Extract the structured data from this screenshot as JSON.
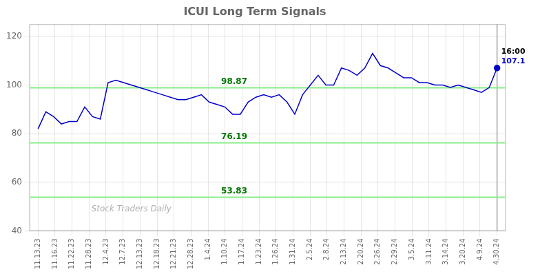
{
  "chart_data": {
    "type": "line",
    "title": "ICUI Long Term Signals",
    "color": "#0000cc",
    "marker": "last",
    "x": [
      0,
      0.4576,
      0.9153,
      1.3729,
      1.8305,
      2.2881,
      2.7458,
      3.2034,
      3.661,
      4.1186,
      4.5763,
      5.0339,
      5.4915,
      5.9492,
      6.4068,
      6.8644,
      7.322,
      7.7797,
      8.2373,
      8.6949,
      9.1525,
      9.6102,
      10.0678,
      10.5254,
      10.9831,
      11.4407,
      11.8983,
      12.3559,
      12.8136,
      13.2712,
      13.7288,
      14.1864,
      14.6441,
      15.1017,
      15.5593,
      16.0169,
      16.4746,
      16.9322,
      17.3898,
      17.8475,
      18.3051,
      18.7627,
      19.2203,
      19.678,
      20.1356,
      20.5932,
      21.0508,
      21.5085,
      21.9661,
      22.4237,
      22.8814,
      23.339,
      23.7966,
      24.2542,
      24.7119,
      25.1695,
      25.6271,
      26.0847,
      26.5424,
      27
    ],
    "values": [
      82,
      89,
      87,
      84,
      85,
      85,
      91,
      87,
      86,
      101,
      102,
      101,
      100,
      99,
      98,
      97,
      96,
      95,
      94,
      94,
      95,
      96,
      93,
      92,
      91,
      88,
      88,
      93,
      95,
      96,
      95,
      96,
      93,
      88,
      96,
      100,
      104,
      100,
      100,
      107,
      106,
      104,
      107,
      113,
      108,
      107,
      105,
      103,
      103,
      101,
      101,
      100,
      100,
      99,
      100,
      99,
      98,
      97,
      99,
      107
    ],
    "xlim": [
      -0.5,
      27.5
    ],
    "xticks": [
      {
        "value": 0,
        "label": "11.13.23"
      },
      {
        "value": 1,
        "label": "11.16.23"
      },
      {
        "value": 2,
        "label": "11.22.23"
      },
      {
        "value": 3,
        "label": "11.28.23"
      },
      {
        "value": 4,
        "label": "12.4.23"
      },
      {
        "value": 5,
        "label": "12.7.23"
      },
      {
        "value": 6,
        "label": "12.13.23"
      },
      {
        "value": 7,
        "label": "12.18.23"
      },
      {
        "value": 8,
        "label": "12.21.23"
      },
      {
        "value": 9,
        "label": "12.28.23"
      },
      {
        "value": 10,
        "label": "1.4.24"
      },
      {
        "value": 11,
        "label": "1.10.24"
      },
      {
        "value": 12,
        "label": "1.17.24"
      },
      {
        "value": 13,
        "label": "1.23.24"
      },
      {
        "value": 14,
        "label": "1.26.24"
      },
      {
        "value": 15,
        "label": "1.31.24"
      },
      {
        "value": 16,
        "label": "2.5.24"
      },
      {
        "value": 17,
        "label": "2.8.24"
      },
      {
        "value": 18,
        "label": "2.13.24"
      },
      {
        "value": 19,
        "label": "2.20.24"
      },
      {
        "value": 20,
        "label": "2.26.24"
      },
      {
        "value": 21,
        "label": "2.29.24"
      },
      {
        "value": 22,
        "label": "3.5.24"
      },
      {
        "value": 23,
        "label": "3.11.24"
      },
      {
        "value": 24,
        "label": "3.14.24"
      },
      {
        "value": 25,
        "label": "3.20.24"
      },
      {
        "value": 26,
        "label": "4.9.24"
      },
      {
        "value": 27,
        "label": "4.30.24"
      }
    ],
    "ylim": [
      40,
      125
    ],
    "yticks": [
      40,
      60,
      80,
      100,
      120
    ],
    "grid": true,
    "reference_lines": {
      "values": [
        98.87,
        76.19,
        53.83
      ],
      "color": "#88ee88",
      "labels": {
        "color": "#007700"
      }
    },
    "last_point_labels": [
      {
        "text": "16:00",
        "color": "#000000"
      },
      {
        "text": "107.1",
        "color": "#0000cc"
      }
    ],
    "watermark": {
      "text": "Stock Traders Daily",
      "color": "#b0b0b0"
    }
  }
}
